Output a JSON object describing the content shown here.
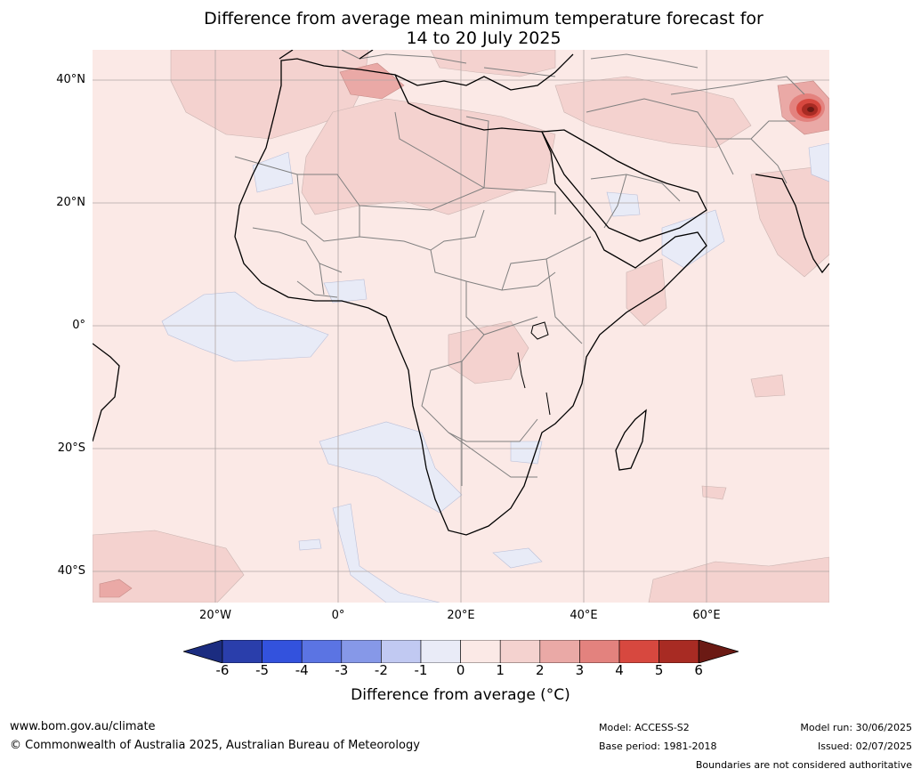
{
  "title_line1": "Difference from average mean minimum temperature forecast for",
  "title_line2": "14 to 20 July 2025",
  "map": {
    "lat_labels": [
      "40°N",
      "20°N",
      "0°",
      "20°S",
      "40°S"
    ],
    "lon_labels": [
      "20°W",
      "0°",
      "20°E",
      "40°E",
      "60°E"
    ],
    "extent": {
      "lon_min": -40,
      "lon_max": 80,
      "lat_min": -45,
      "lat_max": 45
    },
    "colors": {
      "background": "#fbe9e6",
      "warm_1_2": "#f4d2cf",
      "warm_2_3": "#eaa9a6",
      "warm_3_4": "#e3827e",
      "warm_4_5": "#d7483f",
      "warm_5_6": "#a82b23",
      "warm_gt6": "#6b1a14",
      "cool_0_m1": "#e8ebf7"
    }
  },
  "colorbar": {
    "title": "Difference from average (°C)",
    "ticks": [
      "-6",
      "-5",
      "-4",
      "-3",
      "-2",
      "-1",
      "0",
      "1",
      "2",
      "3",
      "4",
      "5",
      "6"
    ],
    "colors": [
      "#1b2c80",
      "#2a3eab",
      "#3352dd",
      "#5b74e3",
      "#8698e8",
      "#c1c9f2",
      "#e9ebf7",
      "#fbe9e6",
      "#f4d2cf",
      "#eaa9a6",
      "#e3827e",
      "#d7483f",
      "#a82b23",
      "#6b1a14"
    ]
  },
  "footer": {
    "website": "www.bom.gov.au/climate",
    "copyright": "© Commonwealth of Australia 2025, Australian Bureau of Meteorology",
    "model": "Model: ACCESS-S2",
    "base_period": "Base period: 1981-2018",
    "model_run": "Model run: 30/06/2025",
    "issued": "Issued: 02/07/2025",
    "disclaimer": "Boundaries are not considered authoritative"
  }
}
